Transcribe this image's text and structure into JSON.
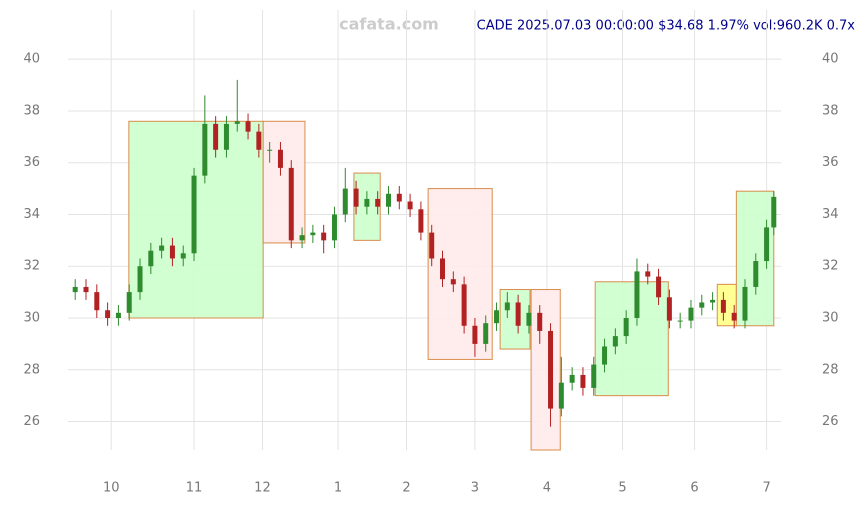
{
  "chart_data": {
    "type": "candlestick",
    "title": "CADE 2025.07.03 00:00:00 $34.68 1.97% vol:960.2K 0.7x",
    "watermark": "cafata.com",
    "x": [
      -10,
      -7,
      -4,
      -1,
      2,
      5,
      8,
      11,
      14,
      17,
      20,
      23,
      26,
      29,
      32,
      35,
      38,
      41,
      44,
      47,
      50,
      53,
      56,
      59,
      62,
      65,
      68,
      71,
      74,
      77,
      80,
      83,
      86,
      89,
      92,
      95,
      98,
      101,
      104,
      107,
      110,
      113,
      116,
      119,
      122,
      125,
      128,
      131,
      134,
      137,
      140,
      143,
      146,
      149,
      152,
      155,
      158,
      161,
      164,
      167,
      170,
      173,
      176,
      179,
      182,
      184
    ],
    "open": [
      31.0,
      31.2,
      31.0,
      30.3,
      30.0,
      30.2,
      31.0,
      32.0,
      32.6,
      32.8,
      32.3,
      32.5,
      35.5,
      37.5,
      36.5,
      37.5,
      37.6,
      37.2,
      36.5,
      36.5,
      35.8,
      33.0,
      33.2,
      33.3,
      33.0,
      34.0,
      35.0,
      34.3,
      34.6,
      34.3,
      34.8,
      34.5,
      34.2,
      33.3,
      32.3,
      31.5,
      31.3,
      29.7,
      29.0,
      29.8,
      30.3,
      30.6,
      29.7,
      30.2,
      29.5,
      26.5,
      27.5,
      27.8,
      27.3,
      28.2,
      28.9,
      29.3,
      30.0,
      31.8,
      31.6,
      30.8,
      29.9,
      29.9,
      30.4,
      30.6,
      30.7,
      30.2,
      29.9,
      31.2,
      32.2,
      33.5
    ],
    "high": [
      31.5,
      31.5,
      31.3,
      30.6,
      30.5,
      31.3,
      32.3,
      32.9,
      33.1,
      33.1,
      32.8,
      35.8,
      38.6,
      37.8,
      37.8,
      39.2,
      37.9,
      37.5,
      36.8,
      36.8,
      36.1,
      33.5,
      33.6,
      33.6,
      34.3,
      35.8,
      35.3,
      34.9,
      34.9,
      35.1,
      35.1,
      34.8,
      34.5,
      33.6,
      32.6,
      31.8,
      31.6,
      30.0,
      30.1,
      30.6,
      31.0,
      30.9,
      30.5,
      30.5,
      29.8,
      28.5,
      28.1,
      28.1,
      28.5,
      29.2,
      29.6,
      30.3,
      32.3,
      32.1,
      31.9,
      31.1,
      30.2,
      30.7,
      30.9,
      31.0,
      31.0,
      30.5,
      31.5,
      32.5,
      33.8,
      34.9
    ],
    "low": [
      30.7,
      30.7,
      30.0,
      29.7,
      29.7,
      29.9,
      30.7,
      31.7,
      32.3,
      32.0,
      32.0,
      32.2,
      35.2,
      36.2,
      36.2,
      37.2,
      36.9,
      36.2,
      36.0,
      35.5,
      32.7,
      32.7,
      32.9,
      32.5,
      32.7,
      33.7,
      34.0,
      34.0,
      34.0,
      34.0,
      34.2,
      33.9,
      33.0,
      32.0,
      31.2,
      31.0,
      29.4,
      28.5,
      28.7,
      29.5,
      30.0,
      29.4,
      29.4,
      29.0,
      25.8,
      26.2,
      27.2,
      27.0,
      27.0,
      27.9,
      28.6,
      29.0,
      29.7,
      31.3,
      30.5,
      29.6,
      29.6,
      29.6,
      30.1,
      30.3,
      29.9,
      29.6,
      29.6,
      30.9,
      31.9,
      33.2
    ],
    "close": [
      31.2,
      31.0,
      30.3,
      30.0,
      30.2,
      31.0,
      32.0,
      32.6,
      32.8,
      32.3,
      32.5,
      35.5,
      37.5,
      36.5,
      37.5,
      37.6,
      37.2,
      36.5,
      36.5,
      35.8,
      33.0,
      33.2,
      33.3,
      33.0,
      34.0,
      35.0,
      34.3,
      34.6,
      34.3,
      34.8,
      34.5,
      34.2,
      33.3,
      32.3,
      31.5,
      31.3,
      29.7,
      29.0,
      29.8,
      30.3,
      30.6,
      29.7,
      30.2,
      29.5,
      26.5,
      27.5,
      27.8,
      27.3,
      28.2,
      28.9,
      29.3,
      30.0,
      31.8,
      31.6,
      30.8,
      29.9,
      29.9,
      30.4,
      30.6,
      30.7,
      30.2,
      29.9,
      31.2,
      32.2,
      33.5,
      34.68
    ],
    "up_color": "#2e8b2e",
    "down_color": "#b22222",
    "boxes": [
      {
        "x0": 4.9,
        "x1": 42.2,
        "y0": 30.0,
        "y1": 37.6,
        "color": "#ccffcc"
      },
      {
        "x0": 42.2,
        "x1": 53.8,
        "y0": 32.9,
        "y1": 37.6,
        "color": "#ffeaea"
      },
      {
        "x0": 67.4,
        "x1": 74.7,
        "y0": 33.0,
        "y1": 35.6,
        "color": "#ccffcc"
      },
      {
        "x0": 88.0,
        "x1": 105.8,
        "y0": 28.4,
        "y1": 35.0,
        "color": "#ffeaea"
      },
      {
        "x0": 108.0,
        "x1": 116.3,
        "y0": 28.8,
        "y1": 31.1,
        "color": "#ccffcc"
      },
      {
        "x0": 116.6,
        "x1": 124.7,
        "y0": 24.9,
        "y1": 31.1,
        "color": "#ffeaea"
      },
      {
        "x0": 134.4,
        "x1": 154.7,
        "y0": 27.0,
        "y1": 31.4,
        "color": "#ccffcc"
      },
      {
        "x0": 168.3,
        "x1": 173.6,
        "y0": 29.7,
        "y1": 31.3,
        "color": "#ffff88"
      },
      {
        "x0": 173.6,
        "x1": 184.0,
        "y0": 29.7,
        "y1": 34.9,
        "color": "#ccffcc"
      }
    ],
    "xlim": [
      -12,
      186
    ],
    "ylim": [
      24.9,
      41.9
    ],
    "xticks": [
      {
        "value": 0,
        "label": "10"
      },
      {
        "value": 23,
        "label": "11"
      },
      {
        "value": 42,
        "label": "12"
      },
      {
        "value": 63,
        "label": "1"
      },
      {
        "value": 82,
        "label": "2"
      },
      {
        "value": 101,
        "label": "3"
      },
      {
        "value": 121,
        "label": "4"
      },
      {
        "value": 142,
        "label": "5"
      },
      {
        "value": 162,
        "label": "6"
      },
      {
        "value": 182,
        "label": "7"
      }
    ],
    "yticks": [
      26,
      28,
      30,
      32,
      34,
      36,
      38,
      40
    ],
    "grid": true
  }
}
